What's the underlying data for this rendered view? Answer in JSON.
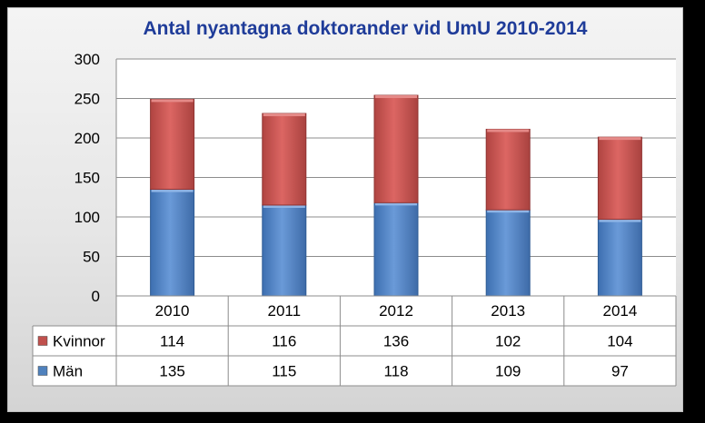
{
  "chart_data": {
    "type": "bar",
    "stacked": true,
    "title": "Antal nyantagna doktorander vid UmU 2010-2014",
    "categories": [
      "2010",
      "2011",
      "2012",
      "2013",
      "2014"
    ],
    "series": [
      {
        "name": "Män",
        "values": [
          135,
          115,
          118,
          109,
          97
        ],
        "color": "#4f81bd"
      },
      {
        "name": "Kvinnor",
        "values": [
          114,
          116,
          136,
          102,
          104
        ],
        "color": "#c0504d"
      }
    ],
    "ylim": [
      0,
      300
    ],
    "yticks": [
      0,
      50,
      100,
      150,
      200,
      250,
      300
    ],
    "grid": true,
    "data_table": true
  }
}
